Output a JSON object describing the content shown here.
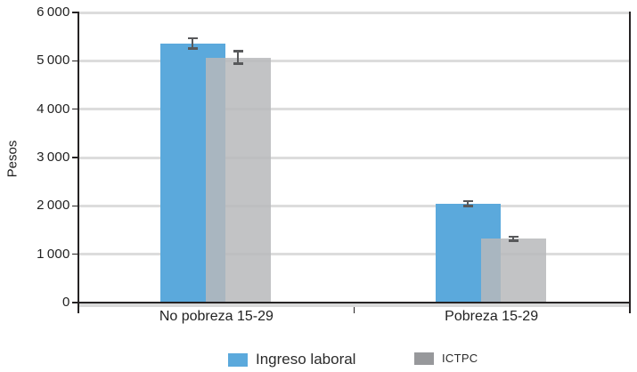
{
  "chart_data": {
    "type": "bar",
    "title": "",
    "xlabel": "",
    "ylabel": "Pesos",
    "categories": [
      "No pobreza 15-29",
      "Pobreza 15-29"
    ],
    "series": [
      {
        "name": "Ingreso laboral",
        "color": "#5BA9DC",
        "legend_color": "#5BA9DC",
        "values": [
          5360,
          2050
        ],
        "errors": [
          110,
          55
        ]
      },
      {
        "name": "ICTPC",
        "color": "rgba(183,184,187,0.85)",
        "legend_color": "#97989B",
        "values": [
          5070,
          1320
        ],
        "errors": [
          130,
          45
        ]
      }
    ],
    "ylim": [
      0,
      6000
    ],
    "ytick_step": 1000,
    "ytick_labels": [
      "0",
      "1 000",
      "2 000",
      "3 000",
      "4 000",
      "5 000",
      "6 000"
    ],
    "grid": true,
    "legend_position": "bottom",
    "colors": {
      "grid": "#DCDCDC",
      "axis": "#262324",
      "error_bar": "#58595B",
      "baseline_shadow": "#D9D9D9",
      "text": "#1F1F1F"
    }
  }
}
